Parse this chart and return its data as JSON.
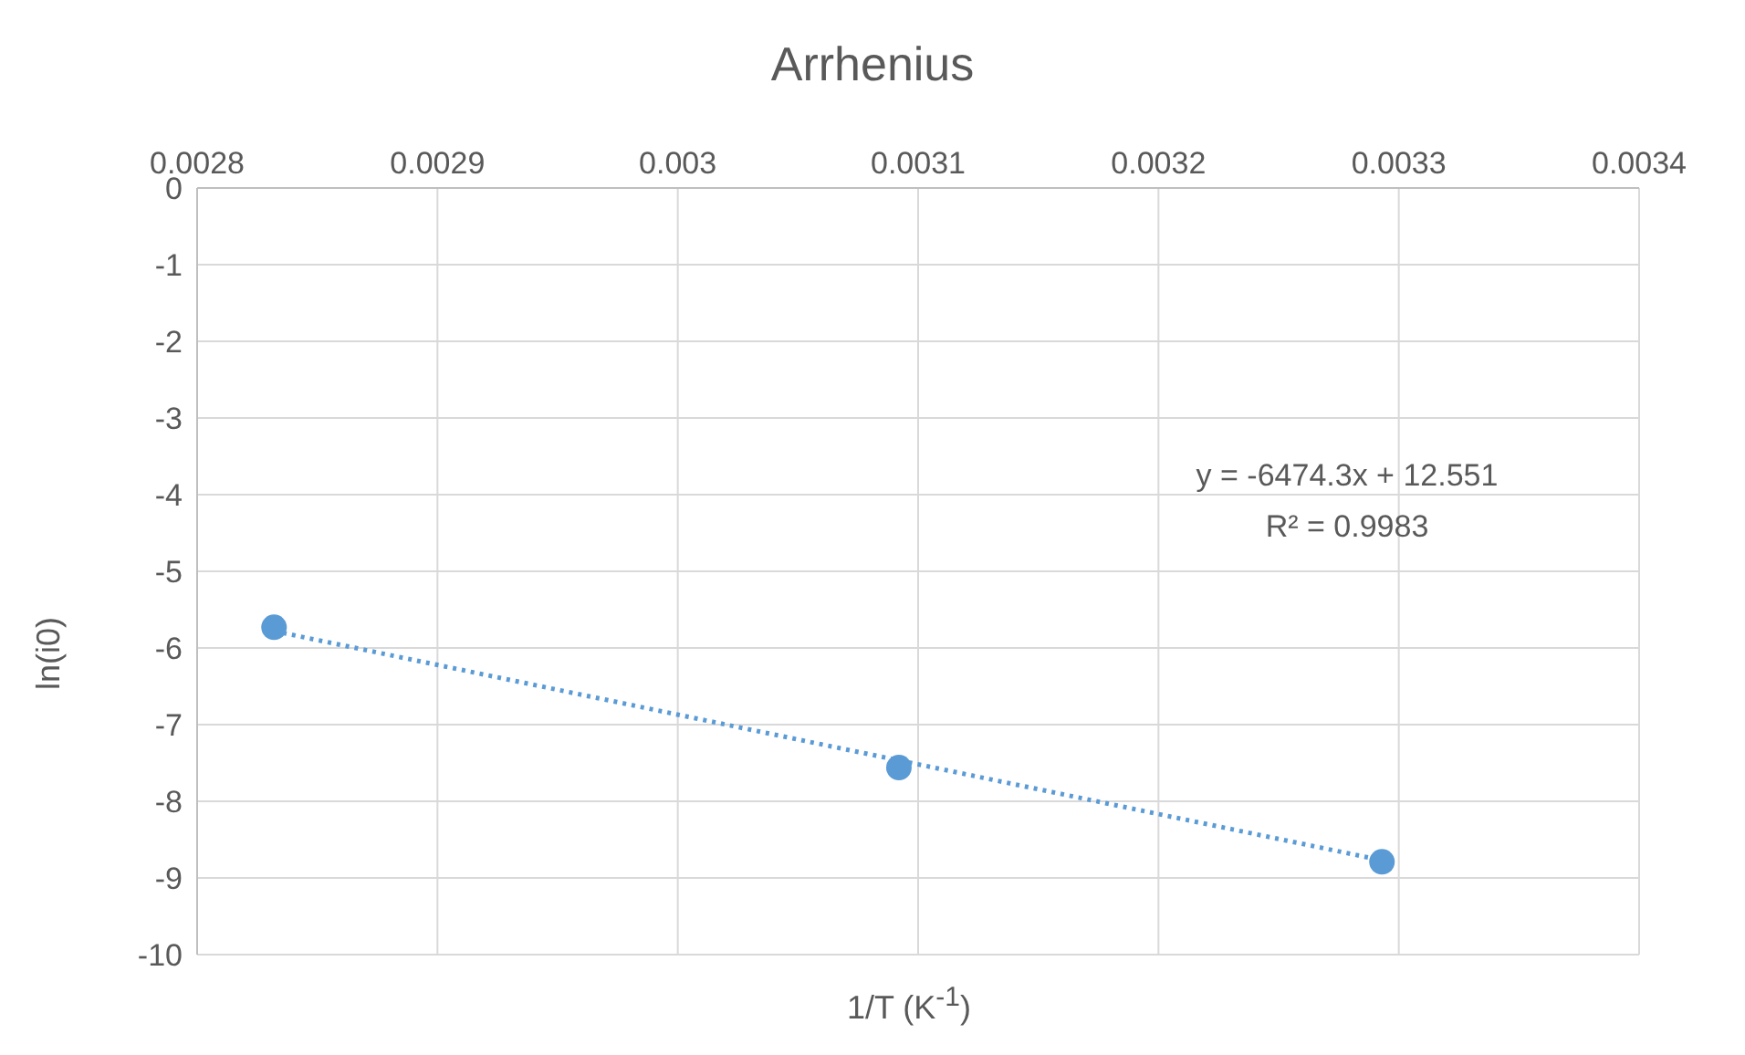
{
  "chart_data": {
    "type": "scatter",
    "title": "Arrhenius",
    "xlabel": "1/T (K$^{-1}$)",
    "ylabel": "ln(i0)",
    "xlim": [
      0.0028,
      0.0034
    ],
    "xticks": [
      0.0028,
      0.0029,
      0.003,
      0.0031,
      0.0032,
      0.0033,
      0.0034
    ],
    "ylim": [
      -10,
      0
    ],
    "yticks": [
      -10,
      -9,
      -8,
      -7,
      -6,
      -5,
      -4,
      -3,
      -2,
      -1,
      0
    ],
    "grid": true,
    "marker": "circle",
    "legend": false,
    "series": [
      {
        "type": "scatter",
        "color": "#5b9bd5",
        "x": [
          0.002832,
          0.003092,
          0.003293
        ],
        "values": [
          -5.73,
          -7.56,
          -8.79
        ]
      },
      {
        "type": "line",
        "color": "#5b9bd5",
        "line_style": "dotted",
        "marker": "none",
        "x": [
          0.002832,
          0.003293
        ],
        "values": [
          -5.78,
          -8.77
        ]
      }
    ],
    "annotations": [
      "y = -6474.3x + 12.551",
      "R² = 0.9983"
    ]
  }
}
